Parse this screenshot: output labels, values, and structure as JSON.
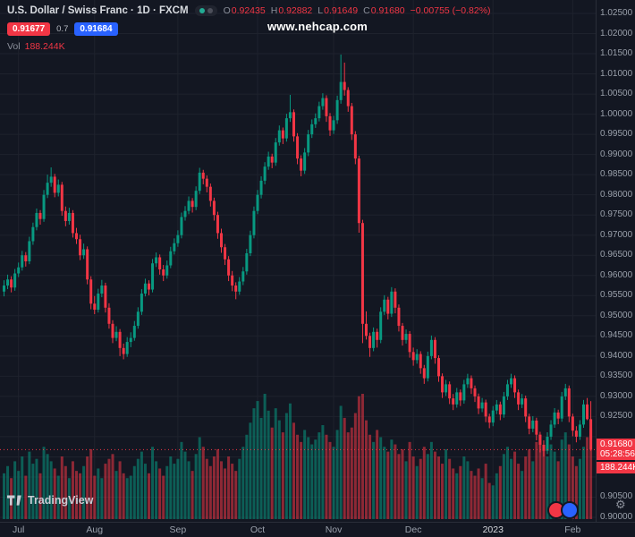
{
  "header": {
    "symbol_title": "U.S. Dollar / Swiss Franc · 1D · FXCM",
    "ohlc": {
      "o_label": "O",
      "o": "0.92435",
      "h_label": "H",
      "h": "0.92882",
      "l_label": "L",
      "l": "0.91649",
      "c_label": "C",
      "c": "0.91680",
      "change": "−0.00755 (−0.82%)"
    },
    "sell_price": "0.91677",
    "spread": "0.7",
    "buy_price": "0.91684",
    "vol_label": "Vol",
    "vol_value": "188.244K"
  },
  "watermark": {
    "text": "www.nehcap.com"
  },
  "price_scale": {
    "labels": [
      "1.02500",
      "1.02000",
      "1.01500",
      "1.01000",
      "1.00500",
      "1.00000",
      "0.99500",
      "0.99000",
      "0.98500",
      "0.98000",
      "0.97500",
      "0.97000",
      "0.96500",
      "0.96000",
      "0.95500",
      "0.95000",
      "0.94500",
      "0.94000",
      "0.93500",
      "0.93000",
      "0.92500",
      "0.90500",
      "0.90000"
    ],
    "current_price": "0.91680",
    "countdown": "05:28:56",
    "current_volume": "188.244K"
  },
  "footer": {
    "logo_text": "TradingView",
    "gear_icon": "⚙"
  },
  "colors": {
    "bg": "#131722",
    "up": "#089981",
    "down": "#f23645",
    "vol_up": "rgba(8,153,129,0.55)",
    "vol_down": "rgba(242,54,69,0.55)",
    "grid": "#1e222d",
    "accent_blue": "#2962ff"
  },
  "chart_data": {
    "type": "candlestick+volume",
    "title": "U.S. Dollar / Swiss Franc",
    "interval": "1D",
    "exchange": "FXCM",
    "y_axis": {
      "min": 0.9,
      "max": 1.025,
      "tick_step": 0.005
    },
    "month_ticks": [
      {
        "label": "Jul",
        "i": 4
      },
      {
        "label": "Aug",
        "i": 25
      },
      {
        "label": "Sep",
        "i": 48
      },
      {
        "label": "Oct",
        "i": 70
      },
      {
        "label": "Nov",
        "i": 91
      },
      {
        "label": "Dec",
        "i": 113
      },
      {
        "label": "2023",
        "i": 135,
        "major": true
      },
      {
        "label": "Feb",
        "i": 157
      }
    ],
    "candles": [
      [
        0.956,
        0.9588,
        0.9548,
        0.9575
      ],
      [
        0.9575,
        0.9602,
        0.9566,
        0.959
      ],
      [
        0.959,
        0.9598,
        0.9558,
        0.957
      ],
      [
        0.957,
        0.9616,
        0.9562,
        0.9605
      ],
      [
        0.9605,
        0.9632,
        0.9596,
        0.962
      ],
      [
        0.962,
        0.9661,
        0.9612,
        0.965
      ],
      [
        0.965,
        0.9658,
        0.9622,
        0.9635
      ],
      [
        0.9635,
        0.9696,
        0.9628,
        0.9685
      ],
      [
        0.9685,
        0.9731,
        0.9676,
        0.972
      ],
      [
        0.972,
        0.9766,
        0.9712,
        0.9755
      ],
      [
        0.9755,
        0.9762,
        0.9726,
        0.974
      ],
      [
        0.974,
        0.9812,
        0.9733,
        0.98
      ],
      [
        0.98,
        0.985,
        0.9792,
        0.983
      ],
      [
        0.983,
        0.9868,
        0.982,
        0.9845
      ],
      [
        0.9845,
        0.9852,
        0.9794,
        0.9805
      ],
      [
        0.9805,
        0.9838,
        0.9796,
        0.9825
      ],
      [
        0.9825,
        0.9832,
        0.9748,
        0.976
      ],
      [
        0.976,
        0.9771,
        0.9722,
        0.9735
      ],
      [
        0.9735,
        0.9768,
        0.9726,
        0.9755
      ],
      [
        0.9755,
        0.9762,
        0.9694,
        0.9705
      ],
      [
        0.9705,
        0.9718,
        0.9678,
        0.969
      ],
      [
        0.969,
        0.9701,
        0.9638,
        0.965
      ],
      [
        0.965,
        0.9679,
        0.9641,
        0.9665
      ],
      [
        0.9665,
        0.9672,
        0.9578,
        0.959
      ],
      [
        0.959,
        0.9598,
        0.9516,
        0.953
      ],
      [
        0.953,
        0.9549,
        0.9504,
        0.9515
      ],
      [
        0.9515,
        0.9567,
        0.9508,
        0.9555
      ],
      [
        0.9555,
        0.9589,
        0.9546,
        0.9575
      ],
      [
        0.9575,
        0.9582,
        0.9508,
        0.952
      ],
      [
        0.952,
        0.9531,
        0.9468,
        0.948
      ],
      [
        0.948,
        0.9489,
        0.9432,
        0.9445
      ],
      [
        0.9445,
        0.9474,
        0.9437,
        0.946
      ],
      [
        0.946,
        0.9467,
        0.94,
        0.942
      ],
      [
        0.942,
        0.9431,
        0.9392,
        0.9405
      ],
      [
        0.9405,
        0.9447,
        0.9398,
        0.9435
      ],
      [
        0.9435,
        0.9459,
        0.9422,
        0.9445
      ],
      [
        0.9445,
        0.9487,
        0.9438,
        0.9475
      ],
      [
        0.9475,
        0.9521,
        0.9468,
        0.951
      ],
      [
        0.951,
        0.9566,
        0.9502,
        0.9555
      ],
      [
        0.9555,
        0.9592,
        0.9548,
        0.958
      ],
      [
        0.958,
        0.9588,
        0.9551,
        0.9565
      ],
      [
        0.9565,
        0.9641,
        0.9558,
        0.963
      ],
      [
        0.963,
        0.9657,
        0.9621,
        0.9645
      ],
      [
        0.9645,
        0.9652,
        0.9602,
        0.9615
      ],
      [
        0.9615,
        0.9626,
        0.9586,
        0.96
      ],
      [
        0.96,
        0.9637,
        0.9592,
        0.9625
      ],
      [
        0.9625,
        0.9671,
        0.9618,
        0.966
      ],
      [
        0.966,
        0.9692,
        0.9652,
        0.968
      ],
      [
        0.968,
        0.9712,
        0.9671,
        0.97
      ],
      [
        0.97,
        0.9756,
        0.9692,
        0.9745
      ],
      [
        0.9745,
        0.9772,
        0.9736,
        0.976
      ],
      [
        0.976,
        0.9796,
        0.9752,
        0.9785
      ],
      [
        0.9785,
        0.9792,
        0.9756,
        0.977
      ],
      [
        0.977,
        0.9821,
        0.9762,
        0.981
      ],
      [
        0.981,
        0.9867,
        0.9802,
        0.9855
      ],
      [
        0.9855,
        0.9862,
        0.9826,
        0.984
      ],
      [
        0.984,
        0.9848,
        0.9806,
        0.982
      ],
      [
        0.982,
        0.9828,
        0.9771,
        0.9785
      ],
      [
        0.9785,
        0.9793,
        0.9736,
        0.975
      ],
      [
        0.975,
        0.9758,
        0.9691,
        0.9705
      ],
      [
        0.9705,
        0.9716,
        0.9656,
        0.967
      ],
      [
        0.967,
        0.9678,
        0.9626,
        0.964
      ],
      [
        0.964,
        0.9648,
        0.9586,
        0.96
      ],
      [
        0.96,
        0.9611,
        0.9561,
        0.9575
      ],
      [
        0.9575,
        0.9583,
        0.9541,
        0.956
      ],
      [
        0.956,
        0.9596,
        0.9552,
        0.9585
      ],
      [
        0.9585,
        0.9621,
        0.9576,
        0.961
      ],
      [
        0.961,
        0.9666,
        0.9602,
        0.9655
      ],
      [
        0.9655,
        0.9711,
        0.9648,
        0.97
      ],
      [
        0.97,
        0.9771,
        0.9692,
        0.976
      ],
      [
        0.976,
        0.9812,
        0.9752,
        0.98
      ],
      [
        0.98,
        0.9846,
        0.9791,
        0.9835
      ],
      [
        0.9835,
        0.9881,
        0.9826,
        0.987
      ],
      [
        0.987,
        0.9907,
        0.9862,
        0.9895
      ],
      [
        0.9895,
        0.9902,
        0.9866,
        0.988
      ],
      [
        0.988,
        0.9941,
        0.9872,
        0.993
      ],
      [
        0.993,
        0.9972,
        0.9922,
        0.996
      ],
      [
        0.996,
        0.9967,
        0.9926,
        0.994
      ],
      [
        0.994,
        1.0001,
        0.9932,
        0.999
      ],
      [
        0.999,
        1.0048,
        0.9981,
        1.0005
      ],
      [
        1.0005,
        1.0012,
        0.9932,
        0.9945
      ],
      [
        0.9945,
        0.9953,
        0.9876,
        0.989
      ],
      [
        0.989,
        0.9898,
        0.9846,
        0.986
      ],
      [
        0.986,
        0.9916,
        0.9852,
        0.9905
      ],
      [
        0.9905,
        0.9961,
        0.9896,
        0.995
      ],
      [
        0.995,
        0.9987,
        0.9941,
        0.9975
      ],
      [
        0.9975,
        1.0002,
        0.9966,
        0.999
      ],
      [
        0.999,
        1.0031,
        0.9982,
        1.002
      ],
      [
        1.002,
        1.0052,
        1.0011,
        1.004
      ],
      [
        1.004,
        1.0047,
        0.9981,
        0.9995
      ],
      [
        0.9995,
        1.0003,
        0.9946,
        0.996
      ],
      [
        0.996,
        0.9996,
        0.9951,
        0.9985
      ],
      [
        0.9985,
        1.0046,
        0.9976,
        1.0035
      ],
      [
        1.0035,
        1.0148,
        1.0026,
        1.008
      ],
      [
        1.008,
        1.0128,
        1.0046,
        1.006
      ],
      [
        1.006,
        1.0067,
        1.0006,
        1.002
      ],
      [
        1.002,
        1.0028,
        0.9936,
        0.995
      ],
      [
        0.995,
        0.9958,
        0.9876,
        0.989
      ],
      [
        0.989,
        0.9897,
        0.9706,
        0.973
      ],
      [
        0.973,
        0.9738,
        0.9432,
        0.948
      ],
      [
        0.948,
        0.9511,
        0.9441,
        0.945
      ],
      [
        0.945,
        0.9458,
        0.9398,
        0.942
      ],
      [
        0.942,
        0.9471,
        0.9412,
        0.946
      ],
      [
        0.946,
        0.9468,
        0.9421,
        0.944
      ],
      [
        0.944,
        0.9521,
        0.9432,
        0.951
      ],
      [
        0.951,
        0.9551,
        0.9502,
        0.954
      ],
      [
        0.954,
        0.9547,
        0.9491,
        0.9505
      ],
      [
        0.9505,
        0.9571,
        0.9497,
        0.956
      ],
      [
        0.956,
        0.9568,
        0.9506,
        0.952
      ],
      [
        0.952,
        0.9528,
        0.9461,
        0.9475
      ],
      [
        0.9475,
        0.9482,
        0.9426,
        0.944
      ],
      [
        0.944,
        0.9466,
        0.9431,
        0.9455
      ],
      [
        0.9455,
        0.9462,
        0.9396,
        0.941
      ],
      [
        0.941,
        0.9421,
        0.9376,
        0.939
      ],
      [
        0.939,
        0.9417,
        0.9381,
        0.9405
      ],
      [
        0.9405,
        0.9412,
        0.9356,
        0.937
      ],
      [
        0.937,
        0.9378,
        0.9331,
        0.9345
      ],
      [
        0.9345,
        0.9411,
        0.9337,
        0.94
      ],
      [
        0.94,
        0.9451,
        0.9392,
        0.944
      ],
      [
        0.944,
        0.9447,
        0.9381,
        0.9395
      ],
      [
        0.9395,
        0.9402,
        0.9336,
        0.935
      ],
      [
        0.935,
        0.9357,
        0.9296,
        0.931
      ],
      [
        0.931,
        0.9341,
        0.9301,
        0.933
      ],
      [
        0.933,
        0.9337,
        0.9281,
        0.9295
      ],
      [
        0.9295,
        0.9306,
        0.9266,
        0.928
      ],
      [
        0.928,
        0.9321,
        0.9272,
        0.931
      ],
      [
        0.931,
        0.9317,
        0.9276,
        0.929
      ],
      [
        0.929,
        0.9341,
        0.9282,
        0.933
      ],
      [
        0.933,
        0.9356,
        0.9321,
        0.9345
      ],
      [
        0.9345,
        0.9352,
        0.9306,
        0.932
      ],
      [
        0.932,
        0.9327,
        0.9286,
        0.93
      ],
      [
        0.93,
        0.9307,
        0.9256,
        0.927
      ],
      [
        0.927,
        0.9296,
        0.9261,
        0.9285
      ],
      [
        0.9285,
        0.9292,
        0.9236,
        0.925
      ],
      [
        0.925,
        0.9257,
        0.9221,
        0.9235
      ],
      [
        0.9235,
        0.9276,
        0.9226,
        0.9265
      ],
      [
        0.9265,
        0.9291,
        0.9256,
        0.928
      ],
      [
        0.928,
        0.9287,
        0.9241,
        0.9255
      ],
      [
        0.9255,
        0.9311,
        0.9247,
        0.93
      ],
      [
        0.93,
        0.9341,
        0.9291,
        0.933
      ],
      [
        0.933,
        0.9356,
        0.9321,
        0.9345
      ],
      [
        0.9345,
        0.9352,
        0.9296,
        0.931
      ],
      [
        0.931,
        0.9317,
        0.9266,
        0.928
      ],
      [
        0.928,
        0.9306,
        0.9271,
        0.9295
      ],
      [
        0.9295,
        0.9302,
        0.9236,
        0.925
      ],
      [
        0.925,
        0.9257,
        0.9206,
        0.922
      ],
      [
        0.922,
        0.9251,
        0.9211,
        0.924
      ],
      [
        0.924,
        0.9247,
        0.9191,
        0.9205
      ],
      [
        0.9205,
        0.9212,
        0.9161,
        0.918
      ],
      [
        0.918,
        0.9191,
        0.9151,
        0.9165
      ],
      [
        0.9165,
        0.9211,
        0.9157,
        0.92
      ],
      [
        0.92,
        0.9241,
        0.9192,
        0.923
      ],
      [
        0.923,
        0.9271,
        0.9222,
        0.926
      ],
      [
        0.926,
        0.9267,
        0.9231,
        0.9245
      ],
      [
        0.9245,
        0.9311,
        0.9237,
        0.93
      ],
      [
        0.93,
        0.9331,
        0.9291,
        0.932
      ],
      [
        0.932,
        0.9327,
        0.9236,
        0.925
      ],
      [
        0.925,
        0.9257,
        0.9201,
        0.9215
      ],
      [
        0.9215,
        0.9226,
        0.9186,
        0.92
      ],
      [
        0.92,
        0.9241,
        0.9192,
        0.923
      ],
      [
        0.923,
        0.9291,
        0.9222,
        0.928
      ],
      [
        0.928,
        0.9296,
        0.9241,
        0.92435
      ],
      [
        0.92435,
        0.92882,
        0.91649,
        0.9168
      ]
    ],
    "volumes": [
      95,
      110,
      85,
      120,
      100,
      130,
      90,
      140,
      115,
      125,
      95,
      150,
      135,
      120,
      105,
      90,
      130,
      110,
      85,
      120,
      100,
      95,
      110,
      130,
      145,
      90,
      105,
      85,
      115,
      125,
      135,
      100,
      120,
      95,
      85,
      90,
      110,
      125,
      140,
      115,
      95,
      150,
      120,
      105,
      90,
      110,
      130,
      115,
      125,
      160,
      140,
      120,
      100,
      135,
      170,
      150,
      125,
      110,
      130,
      145,
      120,
      105,
      130,
      115,
      100,
      125,
      150,
      175,
      200,
      230,
      245,
      210,
      260,
      225,
      190,
      230,
      205,
      180,
      220,
      240,
      200,
      175,
      160,
      185,
      170,
      155,
      165,
      180,
      195,
      175,
      160,
      150,
      185,
      235,
      210,
      180,
      190,
      220,
      255,
      260,
      205,
      175,
      160,
      185,
      170,
      150,
      140,
      165,
      155,
      135,
      145,
      120,
      160,
      130,
      110,
      125,
      150,
      135,
      160,
      140,
      130,
      115,
      145,
      125,
      105,
      95,
      110,
      130,
      120,
      100,
      90,
      105,
      85,
      115,
      75,
      70,
      95,
      110,
      135,
      150,
      125,
      140,
      115,
      100,
      130,
      145,
      120,
      160,
      175,
      150,
      130,
      155,
      140,
      120,
      165,
      180,
      155,
      130,
      110,
      125,
      150,
      170,
      188.244
    ]
  }
}
